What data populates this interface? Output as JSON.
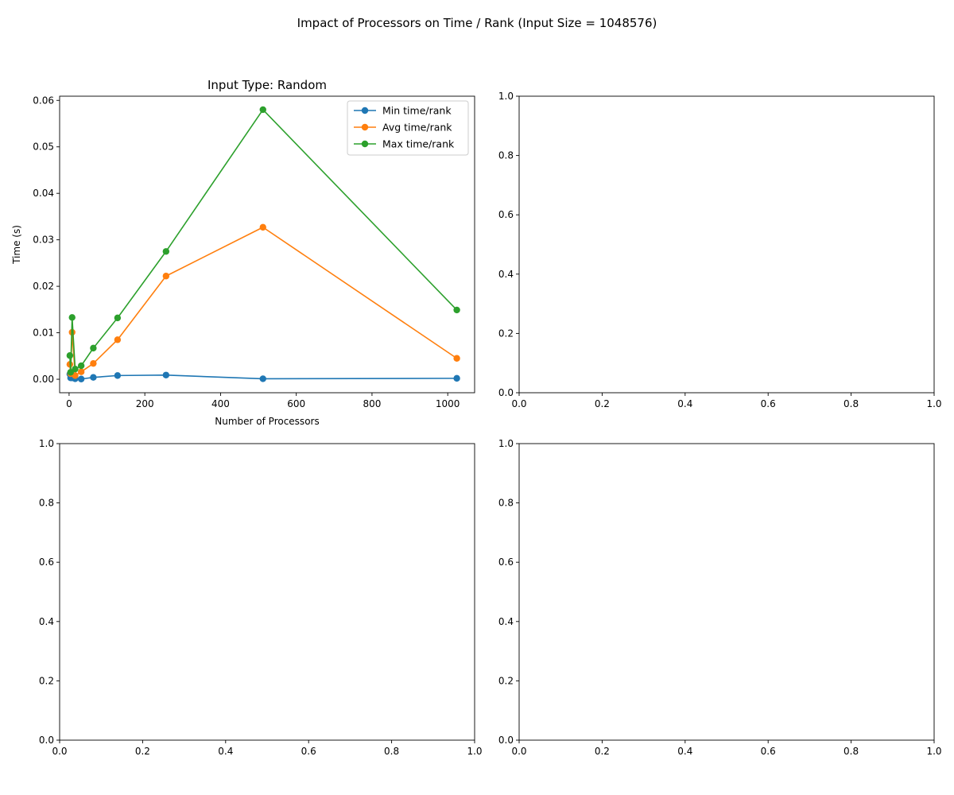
{
  "figure": {
    "suptitle": "Impact of Processors on Time / Rank (Input Size = 1048576)"
  },
  "chart_data": [
    {
      "type": "line",
      "title": "Input Type: Random",
      "xlabel": "Number of Processors",
      "ylabel": "Time (s)",
      "xlim": [
        -25,
        1071
      ],
      "ylim": [
        -0.0029,
        0.0609
      ],
      "xticks": [
        "0",
        "200",
        "400",
        "600",
        "800",
        "1000"
      ],
      "xtick_values": [
        0,
        200,
        400,
        600,
        800,
        1000
      ],
      "yticks": [
        "0.00",
        "0.01",
        "0.02",
        "0.03",
        "0.04",
        "0.05",
        "0.06"
      ],
      "ytick_values": [
        0,
        0.01,
        0.02,
        0.03,
        0.04,
        0.05,
        0.06
      ],
      "grid": false,
      "legend": "upper right",
      "x": [
        2,
        4,
        8,
        16,
        32,
        64,
        128,
        256,
        512,
        1024
      ],
      "series": [
        {
          "name": "Min time/rank",
          "color": "#1f77b4",
          "values": [
            0.0011,
            0.0003,
            0.0003,
            0.0001,
            5e-05,
            0.0004,
            0.0008,
            0.0009,
            0.0001,
            0.0002
          ]
        },
        {
          "name": "Avg time/rank",
          "color": "#ff7f0e",
          "values": [
            0.0032,
            0.0012,
            0.0101,
            0.0008,
            0.0016,
            0.0034,
            0.0085,
            0.0222,
            0.0327,
            0.0045
          ]
        },
        {
          "name": "Max time/rank",
          "color": "#2ca02c",
          "values": [
            0.0051,
            0.0015,
            0.0133,
            0.0022,
            0.0029,
            0.0067,
            0.0132,
            0.0275,
            0.058,
            0.0149
          ]
        }
      ]
    },
    {
      "type": "line",
      "title": "",
      "xlabel": "",
      "ylabel": "",
      "xlim": [
        0,
        1
      ],
      "ylim": [
        0,
        1
      ],
      "xticks": [
        "0.0",
        "0.2",
        "0.4",
        "0.6",
        "0.8",
        "1.0"
      ],
      "xtick_values": [
        0,
        0.2,
        0.4,
        0.6,
        0.8,
        1.0
      ],
      "yticks": [
        "0.0",
        "0.2",
        "0.4",
        "0.6",
        "0.8",
        "1.0"
      ],
      "ytick_values": [
        0,
        0.2,
        0.4,
        0.6,
        0.8,
        1.0
      ],
      "grid": false,
      "series": []
    },
    {
      "type": "line",
      "title": "",
      "xlabel": "",
      "ylabel": "",
      "xlim": [
        0,
        1
      ],
      "ylim": [
        0,
        1
      ],
      "xticks": [
        "0.0",
        "0.2",
        "0.4",
        "0.6",
        "0.8",
        "1.0"
      ],
      "xtick_values": [
        0,
        0.2,
        0.4,
        0.6,
        0.8,
        1.0
      ],
      "yticks": [
        "0.0",
        "0.2",
        "0.4",
        "0.6",
        "0.8",
        "1.0"
      ],
      "ytick_values": [
        0,
        0.2,
        0.4,
        0.6,
        0.8,
        1.0
      ],
      "grid": false,
      "series": []
    },
    {
      "type": "line",
      "title": "",
      "xlabel": "",
      "ylabel": "",
      "xlim": [
        0,
        1
      ],
      "ylim": [
        0,
        1
      ],
      "xticks": [
        "0.0",
        "0.2",
        "0.4",
        "0.6",
        "0.8",
        "1.0"
      ],
      "xtick_values": [
        0,
        0.2,
        0.4,
        0.6,
        0.8,
        1.0
      ],
      "yticks": [
        "0.0",
        "0.2",
        "0.4",
        "0.6",
        "0.8",
        "1.0"
      ],
      "ytick_values": [
        0,
        0.2,
        0.4,
        0.6,
        0.8,
        1.0
      ],
      "grid": false,
      "series": []
    }
  ]
}
